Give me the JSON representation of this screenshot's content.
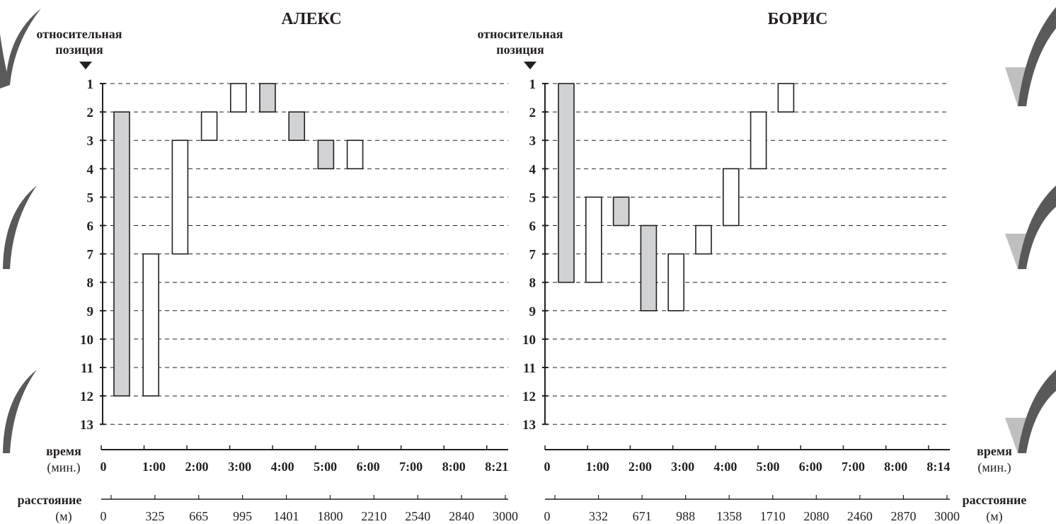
{
  "labels": {
    "position_line1": "относительная",
    "position_line2": "позиция",
    "time_line1": "время",
    "time_line2": "(мин.)",
    "distance_line1": "расстояние",
    "distance_line2": "(м)"
  },
  "colors": {
    "shaded": "#d1d2d3",
    "unshaded": "#ffffff",
    "ink": "#231f20",
    "tick_mark": "#888888"
  },
  "chart_data": [
    {
      "type": "bar",
      "title": "АЛЕКС",
      "ylabel": "относительная позиция",
      "y_ticks": [
        1,
        2,
        3,
        4,
        5,
        6,
        7,
        8,
        9,
        10,
        11,
        12,
        13
      ],
      "y_reversed": true,
      "time_ticks": [
        "0",
        "1:00",
        "2:00",
        "3:00",
        "4:00",
        "5:00",
        "6:00",
        "7:00",
        "8:00",
        "8:21"
      ],
      "distance_ticks": [
        "0",
        "325",
        "665",
        "995",
        "1401",
        "1800",
        "2210",
        "2540",
        "2840",
        "3000"
      ],
      "bars": [
        {
          "segment": 1,
          "from": 2,
          "to": 12,
          "shaded": true
        },
        {
          "segment": 2,
          "from": 7,
          "to": 12,
          "shaded": false
        },
        {
          "segment": 3,
          "from": 3,
          "to": 7,
          "shaded": false
        },
        {
          "segment": 4,
          "from": 2,
          "to": 3,
          "shaded": false
        },
        {
          "segment": 5,
          "from": 1,
          "to": 2,
          "shaded": false
        },
        {
          "segment": 6,
          "from": 1,
          "to": 2,
          "shaded": true
        },
        {
          "segment": 7,
          "from": 2,
          "to": 3,
          "shaded": true
        },
        {
          "segment": 8,
          "from": 3,
          "to": 4,
          "shaded": true
        },
        {
          "segment": 9,
          "from": 3,
          "to": 4,
          "shaded": false
        }
      ]
    },
    {
      "type": "bar",
      "title": "БОРИС",
      "ylabel": "относительная позиция",
      "y_ticks": [
        1,
        2,
        3,
        4,
        5,
        6,
        7,
        8,
        9,
        10,
        11,
        12,
        13
      ],
      "y_reversed": true,
      "time_ticks": [
        "0",
        "1:00",
        "2:00",
        "3:00",
        "4:00",
        "5:00",
        "6:00",
        "7:00",
        "8:00",
        "8:14"
      ],
      "distance_ticks": [
        "0",
        "332",
        "671",
        "988",
        "1358",
        "1710",
        "2080",
        "2460",
        "2870",
        "3000"
      ],
      "bars": [
        {
          "segment": 1,
          "from": 1,
          "to": 8,
          "shaded": true
        },
        {
          "segment": 2,
          "from": 5,
          "to": 8,
          "shaded": false
        },
        {
          "segment": 3,
          "from": 5,
          "to": 6,
          "shaded": true
        },
        {
          "segment": 4,
          "from": 6,
          "to": 9,
          "shaded": true
        },
        {
          "segment": 5,
          "from": 7,
          "to": 9,
          "shaded": false
        },
        {
          "segment": 6,
          "from": 6,
          "to": 7,
          "shaded": false
        },
        {
          "segment": 7,
          "from": 4,
          "to": 6,
          "shaded": false
        },
        {
          "segment": 8,
          "from": 2,
          "to": 4,
          "shaded": false
        },
        {
          "segment": 9,
          "from": 1,
          "to": 2,
          "shaded": false
        }
      ]
    }
  ]
}
